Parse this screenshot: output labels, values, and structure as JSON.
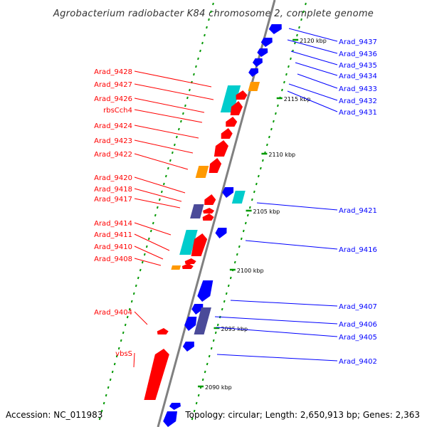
{
  "title": "Agrobacterium radiobacter K84 chromosome 2, complete genome",
  "footer": {
    "accession": "Accession: NC_011983",
    "summary": "Topology: circular; Length: 2,650,913 bp; Genes: 2,363"
  },
  "colors": {
    "forward": "#ff0000",
    "reverse": "#0000ff",
    "orange": "#ff9900",
    "cyan": "#00cccc",
    "purple": "#4b4b99",
    "backbone": "#808080",
    "tick_minor": "#009900"
  },
  "ticks": [
    "2120 kbp",
    "2115 kbp",
    "2110 kbp",
    "2105 kbp",
    "2100 kbp",
    "2095 kbp",
    "2090 kbp"
  ],
  "left_labels": [
    "Arad_9428",
    "Arad_9427",
    "Arad_9426",
    "rbsCch4",
    "Arad_9424",
    "Arad_9423",
    "Arad_9422",
    "Arad_9420",
    "Arad_9418",
    "Arad_9417",
    "Arad_9414",
    "Arad_9411",
    "Arad_9410",
    "Arad_9408",
    "Arad_9404",
    "vbsS"
  ],
  "right_labels": [
    "Arad_9437",
    "Arad_9436",
    "Arad_9435",
    "Arad_9434",
    "Arad_9433",
    "Arad_9432",
    "Arad_9431",
    "Arad_9421",
    "Arad_9416",
    "Arad_9407",
    "Arad_9406",
    "Arad_9405",
    "Arad_9402"
  ]
}
